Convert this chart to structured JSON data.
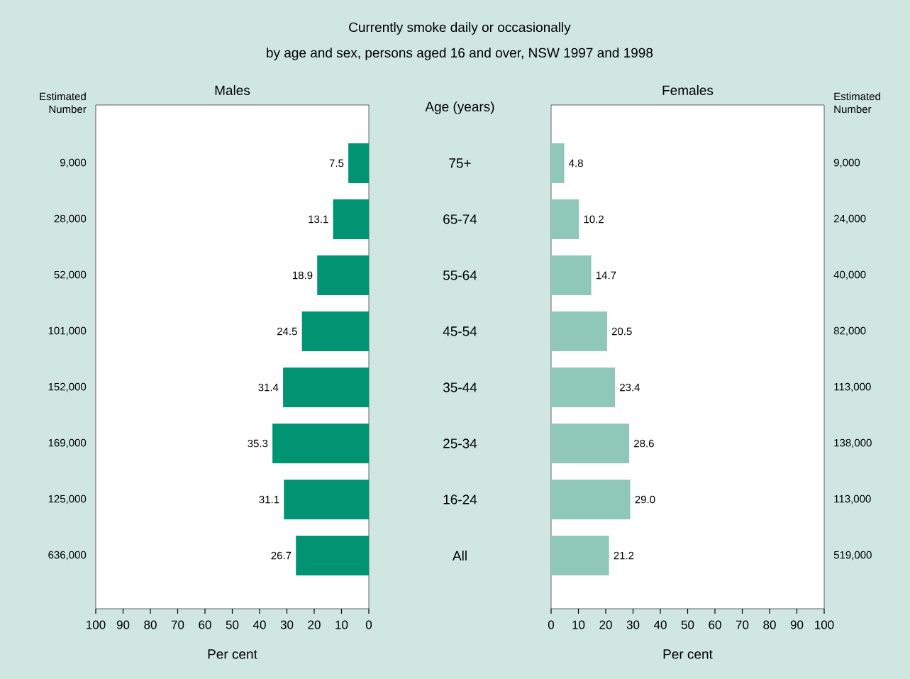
{
  "chart_data": [
    {
      "type": "other",
      "title": "Currently smoke daily or occasionally",
      "subtitle": "by age and sex, persons aged 16 and over, NSW 1997 and 1998"
    },
    {
      "type": "bar",
      "orientation": "horizontal",
      "title": "Males",
      "ylabel": "Age (years)",
      "xlabel": "Per cent",
      "categories": [
        "75+",
        "65-74",
        "55-64",
        "45-54",
        "35-44",
        "25-34",
        "16-24",
        "All"
      ],
      "values": [
        7.5,
        13.1,
        18.9,
        24.5,
        31.4,
        35.3,
        31.1,
        26.7
      ],
      "value_labels": [
        "7.5",
        "13.1",
        "18.9",
        "24.5",
        "31.4",
        "35.3",
        "31.1",
        "26.7"
      ],
      "color": "#009473",
      "xlim": [
        100,
        0
      ],
      "xticks": [
        100,
        90,
        80,
        70,
        60,
        50,
        40,
        30,
        20,
        10,
        0
      ],
      "annotations": [
        "Estimated Number",
        "9,000",
        "28,000",
        "52,000",
        "101,000",
        "152,000",
        "169,000",
        "125,000",
        "636,000"
      ]
    },
    {
      "type": "bar",
      "orientation": "horizontal",
      "title": "Females",
      "xlabel": "Per cent",
      "categories": [
        null,
        null,
        null,
        null,
        null,
        null,
        null,
        null
      ],
      "values": [
        4.8,
        10.2,
        14.7,
        20.5,
        23.4,
        28.6,
        29.0,
        21.2
      ],
      "value_labels": [
        "4.8",
        "10.2",
        "14.7",
        "20.5",
        "23.4",
        "28.6",
        "29.0",
        "21.2"
      ],
      "color": "#8fc8b8",
      "xlim": [
        0,
        100
      ],
      "xticks": [
        0,
        10,
        20,
        30,
        40,
        50,
        60,
        70,
        80,
        90,
        100
      ],
      "annotations": [
        "Estimated Number",
        "9,000",
        "24,000",
        "40,000",
        "82,000",
        "113,000",
        "138,000",
        "113,000",
        "519,000"
      ]
    }
  ]
}
